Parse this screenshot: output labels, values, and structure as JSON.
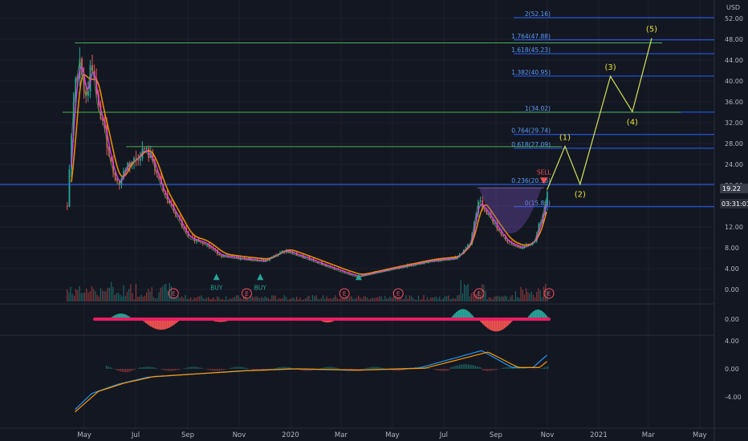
{
  "currency": "USD",
  "last_price": "19.22",
  "countdown": "03:31:01",
  "colors": {
    "background": "#131722",
    "grid": "#1e222d",
    "up": "#26a69a",
    "down": "#ef5350",
    "fib": "#2962ff",
    "fib_text": "#5b9cf6",
    "resistance": "#4caf50",
    "wave": "#d4e157",
    "wave_text": "#e8e337",
    "ma_fast": "#e040fb",
    "ma_slow": "#ff9800",
    "earnings": "#f7525f",
    "sell": "#ef5350",
    "buy": "#26a69a"
  },
  "x_axis": [
    "May",
    "Jul",
    "Sep",
    "Nov",
    "2020",
    "Mar",
    "May",
    "Jul",
    "Sep",
    "Nov",
    "2021",
    "Mar",
    "May"
  ],
  "price_axis": [
    "52.00",
    "48.00",
    "44.00",
    "40.00",
    "36.00",
    "32.00",
    "28.00",
    "24.00",
    "20.00",
    "16.00",
    "12.00",
    "8.00",
    "4.00",
    "0.00"
  ],
  "osc_axis": [
    "0.00"
  ],
  "macd_axis": [
    "4.00",
    "0.00",
    "-4.00"
  ],
  "fib_levels": [
    {
      "label": "2(52.16)",
      "value": 52.16
    },
    {
      "label": "1.764(47.88)",
      "value": 47.88
    },
    {
      "label": "1.618(45.23)",
      "value": 45.23
    },
    {
      "label": "1.382(40.95)",
      "value": 40.95
    },
    {
      "label": "1(34.02)",
      "value": 34.02
    },
    {
      "label": "0.764(29.74)",
      "value": 29.74
    },
    {
      "label": "0.618(27.09)",
      "value": 27.09
    },
    {
      "label": "0.236(20.16)",
      "value": 20.16
    },
    {
      "label": "0(15.88)",
      "value": 15.88
    }
  ],
  "waves": [
    "(1)",
    "(2)",
    "(3)",
    "(4)",
    "(5)"
  ],
  "signals": {
    "sell": "SELL",
    "buy": "BUY"
  },
  "earnings_marker": "E",
  "chart_data": [
    {
      "type": "line",
      "title": "",
      "ylabel": "USD",
      "ylim": [
        -1.5,
        54
      ],
      "x_ticks": [
        "May",
        "Jul",
        "Sep",
        "Nov",
        "2020",
        "Mar",
        "May",
        "Jul",
        "Sep",
        "Nov",
        "2021",
        "Mar",
        "May"
      ],
      "series": [
        {
          "values": [
            {
              "t": "2019-04-10",
              "v": 16
            },
            {
              "t": "2019-04-18",
              "v": 37
            },
            {
              "t": "2019-04-25",
              "v": 45
            },
            {
              "t": "2019-05-02",
              "v": 36
            },
            {
              "t": "2019-05-09",
              "v": 44
            },
            {
              "t": "2019-05-16",
              "v": 35
            },
            {
              "t": "2019-05-23",
              "v": 32
            },
            {
              "t": "2019-06-01",
              "v": 24
            },
            {
              "t": "2019-06-10",
              "v": 20
            },
            {
              "t": "2019-06-20",
              "v": 24
            },
            {
              "t": "2019-07-01",
              "v": 25
            },
            {
              "t": "2019-07-10",
              "v": 27
            },
            {
              "t": "2019-07-20",
              "v": 25
            },
            {
              "t": "2019-08-01",
              "v": 19
            },
            {
              "t": "2019-08-15",
              "v": 15
            },
            {
              "t": "2019-09-01",
              "v": 10
            },
            {
              "t": "2019-09-20",
              "v": 9
            },
            {
              "t": "2019-10-10",
              "v": 6.5
            },
            {
              "t": "2019-11-01",
              "v": 6
            },
            {
              "t": "2019-12-01",
              "v": 5.5
            },
            {
              "t": "2019-12-25",
              "v": 7.5
            },
            {
              "t": "2020-01-20",
              "v": 6
            },
            {
              "t": "2020-03-01",
              "v": 3.5
            },
            {
              "t": "2020-03-20",
              "v": 2.5
            },
            {
              "t": "2020-05-01",
              "v": 4
            },
            {
              "t": "2020-06-15",
              "v": 5.5
            },
            {
              "t": "2020-07-15",
              "v": 6
            },
            {
              "t": "2020-08-01",
              "v": 9
            },
            {
              "t": "2020-08-10",
              "v": 17
            },
            {
              "t": "2020-08-20",
              "v": 15
            },
            {
              "t": "2020-09-01",
              "v": 12
            },
            {
              "t": "2020-09-15",
              "v": 9
            },
            {
              "t": "2020-10-01",
              "v": 8
            },
            {
              "t": "2020-10-15",
              "v": 9
            },
            {
              "t": "2020-10-25",
              "v": 14
            },
            {
              "t": "2020-11-01",
              "v": 19.22
            }
          ]
        },
        {
          "name": "Elliott wave projection",
          "values": [
            {
              "t": "2020-11-01",
              "v": 19.22
            },
            {
              "t": "2020-11-22",
              "v": 27.5
            },
            {
              "t": "2020-12-10",
              "v": 20.2
            },
            {
              "t": "2021-01-15",
              "v": 40.9
            },
            {
              "t": "2021-02-10",
              "v": 34.1
            },
            {
              "t": "2021-03-05",
              "v": 48.2
            }
          ]
        }
      ],
      "horizontal_lines": [
        47.3,
        34.0,
        27.4
      ],
      "annotations": [
        "BUY",
        "BUY",
        "SELL",
        "(1)",
        "(2)",
        "(3)",
        "(4)",
        "(5)"
      ]
    },
    {
      "type": "bar",
      "title": "",
      "ylim": [
        -1,
        1
      ],
      "description_values": "oscillator histogram"
    },
    {
      "type": "line",
      "title": "",
      "ylim": [
        -6,
        5
      ],
      "x_ticks": [
        "May",
        "Jul",
        "Sep",
        "Nov",
        "2020",
        "Mar",
        "May",
        "Jul",
        "Sep",
        "Nov",
        "2021",
        "Mar",
        "May"
      ],
      "series": [
        {
          "values": [
            {
              "t": "2019-04-20",
              "v": -5.8
            },
            {
              "t": "2019-05-10",
              "v": -3.5
            },
            {
              "t": "2019-06-10",
              "v": -2.2
            },
            {
              "t": "2019-07-15",
              "v": -1.2
            },
            {
              "t": "2019-09-01",
              "v": -0.8
            },
            {
              "t": "2019-11-01",
              "v": -0.3
            },
            {
              "t": "2020-01-01",
              "v": 0.0
            },
            {
              "t": "2020-03-15",
              "v": -0.2
            },
            {
              "t": "2020-06-01",
              "v": 0.1
            },
            {
              "t": "2020-08-15",
              "v": 2.6
            },
            {
              "t": "2020-09-20",
              "v": 0.2
            },
            {
              "t": "2020-10-15",
              "v": 0.2
            },
            {
              "t": "2020-11-01",
              "v": 2.0
            }
          ]
        }
      ]
    }
  ]
}
